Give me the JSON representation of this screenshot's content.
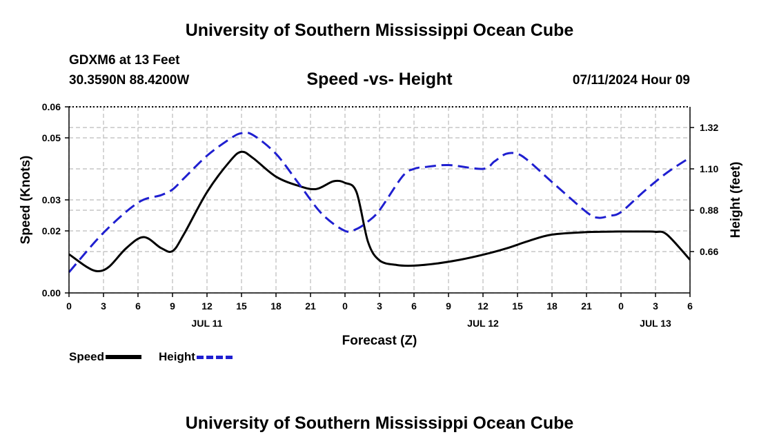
{
  "header": {
    "title": "University of Southern Mississippi Ocean Cube",
    "station": "GDXM6 at 13 Feet",
    "coords": "30.3590N  88.4200W",
    "subtitle": "Speed -vs- Height",
    "datetime": "07/11/2024 Hour 09"
  },
  "footer": {
    "title": "University of Southern Mississippi Ocean Cube"
  },
  "legend": {
    "speed": "Speed",
    "height": "Height"
  },
  "colors": {
    "speed": "#000000",
    "height": "#1f1fd0",
    "grid": "#bbbbbb"
  },
  "chart_data": {
    "type": "line",
    "title": "Speed -vs- Height",
    "xlabel": "Forecast (Z)",
    "ylabel": "Speed (Knots)",
    "y2label": "Height (feet)",
    "x_range": [
      0,
      54
    ],
    "ylim": [
      0,
      0.06
    ],
    "y2lim": [
      0.44,
      1.43
    ],
    "x_ticks": [
      0,
      3,
      6,
      9,
      12,
      15,
      18,
      21,
      24,
      27,
      30,
      33,
      36,
      39,
      42,
      45,
      48,
      51,
      54
    ],
    "x_tick_labels": [
      "0",
      "3",
      "6",
      "9",
      "12",
      "15",
      "18",
      "21",
      "0",
      "3",
      "6",
      "9",
      "12",
      "15",
      "18",
      "21",
      "0",
      "3",
      "6"
    ],
    "date_labels": [
      {
        "x": 12,
        "label": "JUL 11"
      },
      {
        "x": 36,
        "label": "JUL 12"
      },
      {
        "x": 51,
        "label": "JUL 13"
      }
    ],
    "y_ticks": [
      0,
      0.02,
      0.03,
      0.05,
      0.06
    ],
    "y_tick_labels": [
      "0.00",
      "0.02",
      "0.03",
      "0.05",
      "0.06"
    ],
    "y2_ticks": [
      0.66,
      0.88,
      1.1,
      1.32
    ],
    "y2_tick_labels": [
      "0.66",
      "0.88",
      "1.10",
      "1.32"
    ],
    "series": [
      {
        "name": "Speed",
        "axis": "left",
        "x": [
          0,
          1.5,
          2.5,
          3.5,
          5,
          6.5,
          8,
          9,
          10,
          12,
          14,
          15,
          16,
          18,
          20,
          21.5,
          23,
          24,
          25,
          26,
          27,
          28.5,
          30,
          32,
          34,
          36,
          38,
          40,
          42,
          45,
          48,
          50,
          51,
          52,
          54
        ],
        "y": [
          0.0125,
          0.0085,
          0.007,
          0.0085,
          0.0145,
          0.018,
          0.0145,
          0.0135,
          0.019,
          0.0325,
          0.0425,
          0.0455,
          0.0435,
          0.0375,
          0.0345,
          0.0335,
          0.036,
          0.0355,
          0.0325,
          0.0165,
          0.0105,
          0.009,
          0.0088,
          0.0095,
          0.0107,
          0.0123,
          0.0143,
          0.0168,
          0.0188,
          0.0196,
          0.0198,
          0.0198,
          0.0197,
          0.0188,
          0.0107
        ]
      },
      {
        "name": "Height",
        "axis": "right",
        "x": [
          0,
          3,
          6,
          8,
          9,
          10,
          12,
          14,
          15,
          16,
          18,
          20,
          22,
          24,
          25,
          26,
          27,
          29,
          30,
          31,
          33,
          36,
          37,
          38,
          39,
          40,
          42,
          45,
          46,
          47,
          48,
          50,
          52,
          54
        ],
        "y": [
          0.55,
          0.76,
          0.92,
          0.96,
          0.99,
          1.05,
          1.17,
          1.26,
          1.29,
          1.28,
          1.18,
          1.02,
          0.86,
          0.77,
          0.78,
          0.82,
          0.88,
          1.06,
          1.1,
          1.11,
          1.12,
          1.1,
          1.14,
          1.18,
          1.18,
          1.14,
          1.03,
          0.87,
          0.84,
          0.85,
          0.87,
          0.98,
          1.08,
          1.16
        ]
      }
    ]
  }
}
